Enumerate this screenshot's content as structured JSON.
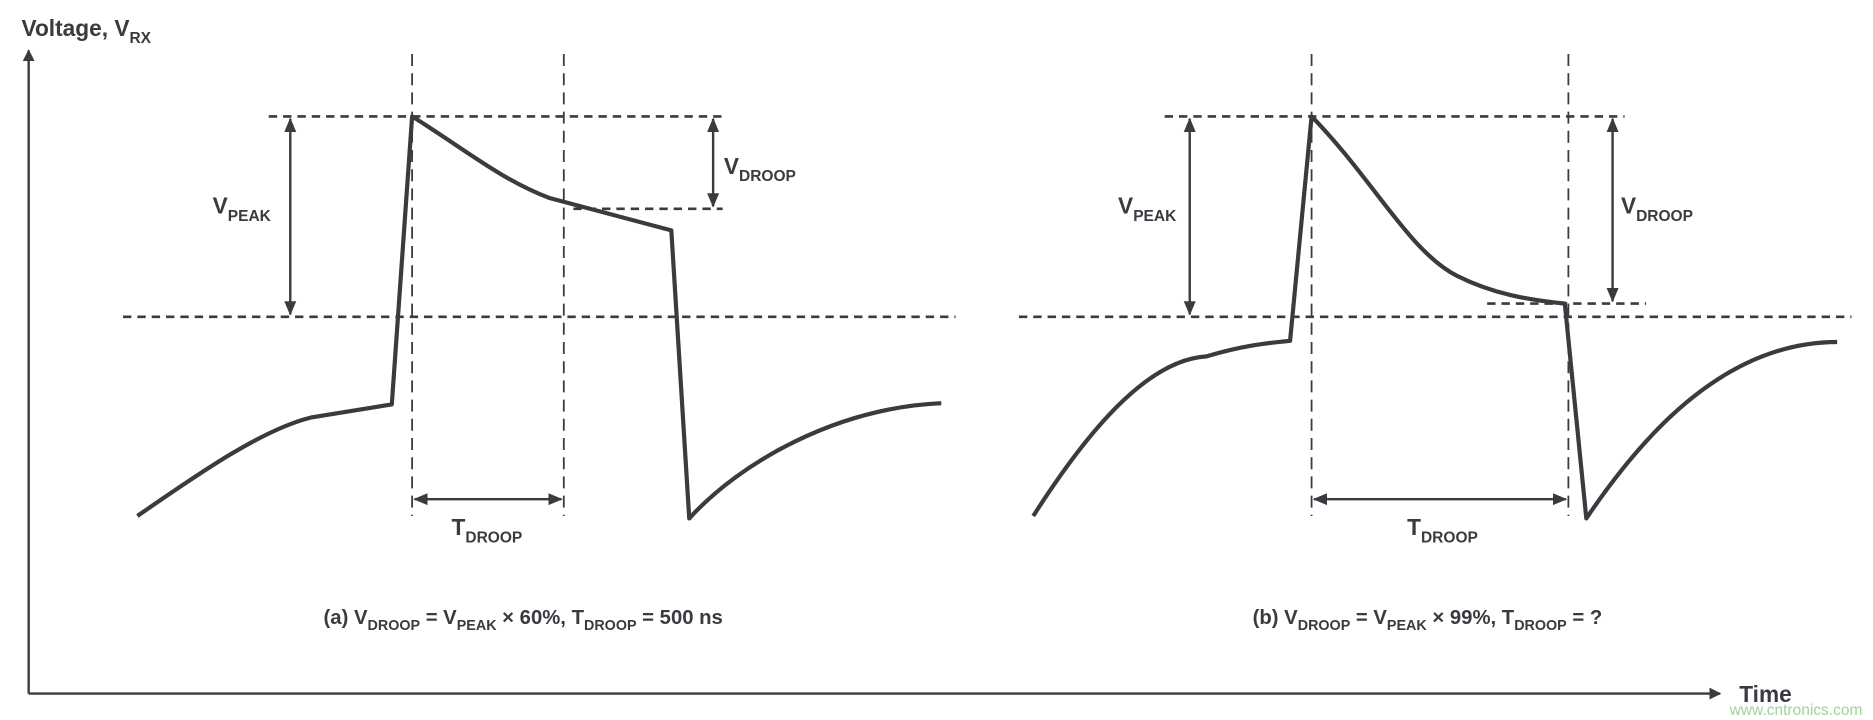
{
  "axes": {
    "y_label": "Voltage, V",
    "y_label_sub": "RX",
    "x_label": "Time"
  },
  "panel_a": {
    "vpeak": {
      "main": "V",
      "sub": "PEAK"
    },
    "vdroop": {
      "main": "V",
      "sub": "DROOP"
    },
    "tdroop": {
      "main": "T",
      "sub": "DROOP"
    },
    "caption": [
      "(a) V",
      "DROOP",
      " = V",
      "PEAK",
      " × 60%, T",
      "DROOP",
      " = 500 ns"
    ]
  },
  "panel_b": {
    "vpeak": {
      "main": "V",
      "sub": "PEAK"
    },
    "vdroop": {
      "main": "V",
      "sub": "DROOP"
    },
    "tdroop": {
      "main": "T",
      "sub": "DROOP"
    },
    "caption": [
      "(b) V",
      "DROOP",
      " = V",
      "PEAK",
      " × 99%, T",
      "DROOP",
      " = ?"
    ]
  },
  "watermark": "www.cntronics.com",
  "colors": {
    "ink": "#3a3a40",
    "watermark": "#9fd39a"
  }
}
